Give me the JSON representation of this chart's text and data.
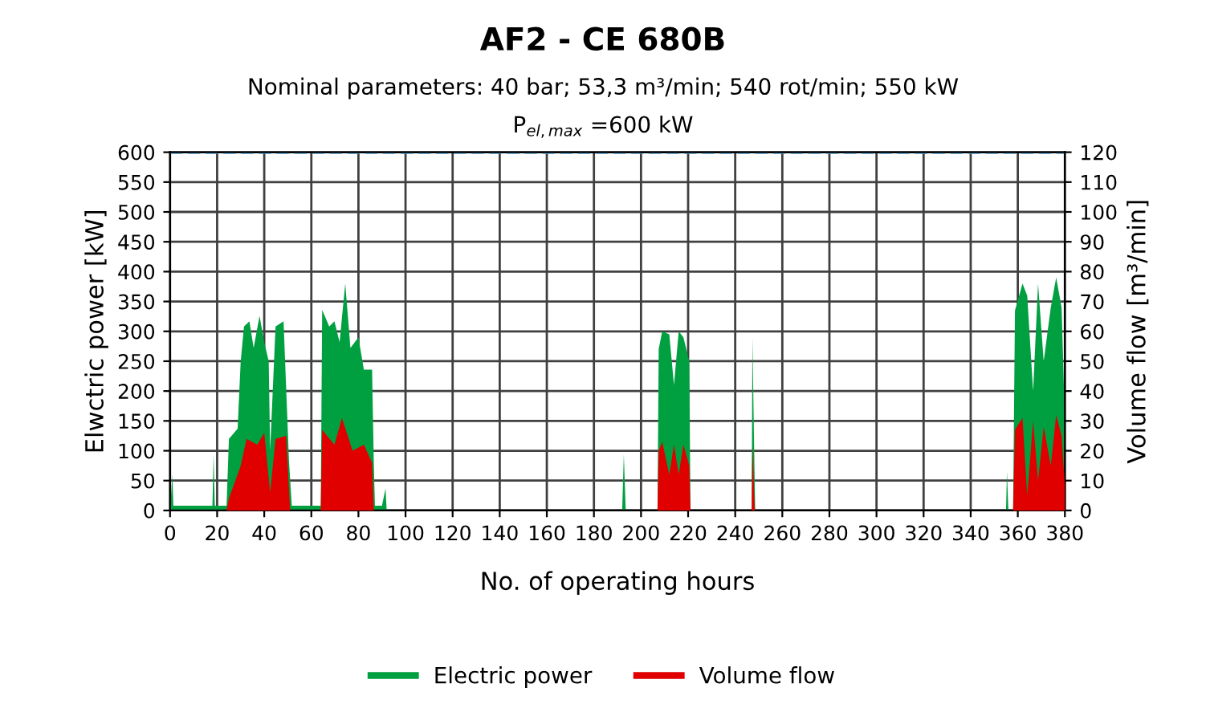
{
  "chart_data": {
    "type": "area",
    "title": "AF2 - CE 680B",
    "subtitle": "Nominal parameters: 40 bar; 53,3 m³/min; 540 rot/min; 550 kW",
    "xlabel": "No. of operating hours",
    "ylabel": "Elwctric power [kW]",
    "y2label": "Volume flow [m³/min]",
    "series": [
      {
        "name": "Electric power",
        "color": "#00a040",
        "x": [
          0,
          1,
          1.4,
          2,
          18,
          18.5,
          19,
          24,
          25,
          28.7,
          30,
          31.4,
          33.7,
          35.5,
          38,
          40,
          41.9,
          42.5,
          44.8,
          48.2,
          50.5,
          51.7,
          64,
          64.6,
          67.6,
          69.8,
          72,
          74.4,
          76.6,
          80,
          82.3,
          85.8,
          86.5,
          87,
          90,
          91.5,
          92,
          93,
          192,
          192.7,
          193.5,
          207,
          207.5,
          209,
          212,
          214,
          216,
          218,
          220.5,
          221,
          247,
          247.3,
          248.2,
          248.5,
          355,
          355.4,
          356,
          358,
          358.8,
          362,
          364,
          366.5,
          368.6,
          371,
          374,
          376.3,
          378.6,
          380
        ],
        "values": [
          0,
          60,
          8,
          8,
          8,
          94,
          8,
          8,
          120,
          137,
          250,
          308,
          317,
          272,
          326,
          282,
          250,
          100,
          308,
          317,
          84,
          8,
          8,
          336,
          308,
          317,
          282,
          380,
          272,
          290,
          236,
          236,
          84,
          8,
          8,
          37,
          0,
          0,
          0,
          94,
          0,
          0,
          270,
          300,
          295,
          210,
          300,
          290,
          250,
          0,
          0,
          290,
          65,
          0,
          0,
          65,
          0,
          0,
          335,
          380,
          360,
          200,
          380,
          250,
          340,
          390,
          340,
          150
        ]
      },
      {
        "name": "Volume flow",
        "color": "#e00000",
        "axis": "y2",
        "x": [
          0,
          24,
          25,
          30,
          32.5,
          37,
          40,
          42.5,
          44.8,
          49.3,
          51,
          64,
          64.6,
          69.8,
          73,
          77.5,
          82.3,
          85.8,
          86.5,
          207,
          207.5,
          209,
          212,
          214,
          216,
          218,
          220.5,
          221,
          247,
          247.3,
          248.3,
          358,
          358.8,
          362,
          364,
          366.5,
          368.6,
          371,
          374,
          376.3,
          378.6,
          380
        ],
        "values": [
          0,
          0,
          4,
          15,
          24,
          22,
          26,
          6,
          24,
          25,
          0,
          0,
          27,
          22,
          31,
          20,
          22,
          16,
          0,
          0,
          20,
          23,
          12,
          22,
          12,
          22,
          15,
          0,
          0,
          22,
          0,
          0,
          27,
          31,
          5,
          30,
          10,
          28,
          15,
          32,
          25,
          8
        ]
      }
    ],
    "xlim": [
      0,
      380
    ],
    "xticks": [
      0,
      20,
      40,
      60,
      80,
      100,
      120,
      140,
      160,
      180,
      200,
      220,
      240,
      260,
      280,
      300,
      320,
      340,
      360,
      380
    ],
    "ylim": [
      0,
      600
    ],
    "yticks": [
      0,
      50,
      100,
      150,
      200,
      250,
      300,
      350,
      400,
      450,
      500,
      550,
      600
    ],
    "y2lim": [
      0,
      120
    ],
    "y2ticks": [
      0,
      10,
      20,
      30,
      40,
      50,
      60,
      70,
      80,
      90,
      100,
      110,
      120
    ],
    "ref_lines": [
      {
        "axis": "y",
        "value": 600,
        "label": "P$_{el,max}$ =600 kW",
        "color": "#4fa3d8",
        "line_style": "dashed"
      }
    ],
    "grid": true,
    "legend": "bottom"
  }
}
